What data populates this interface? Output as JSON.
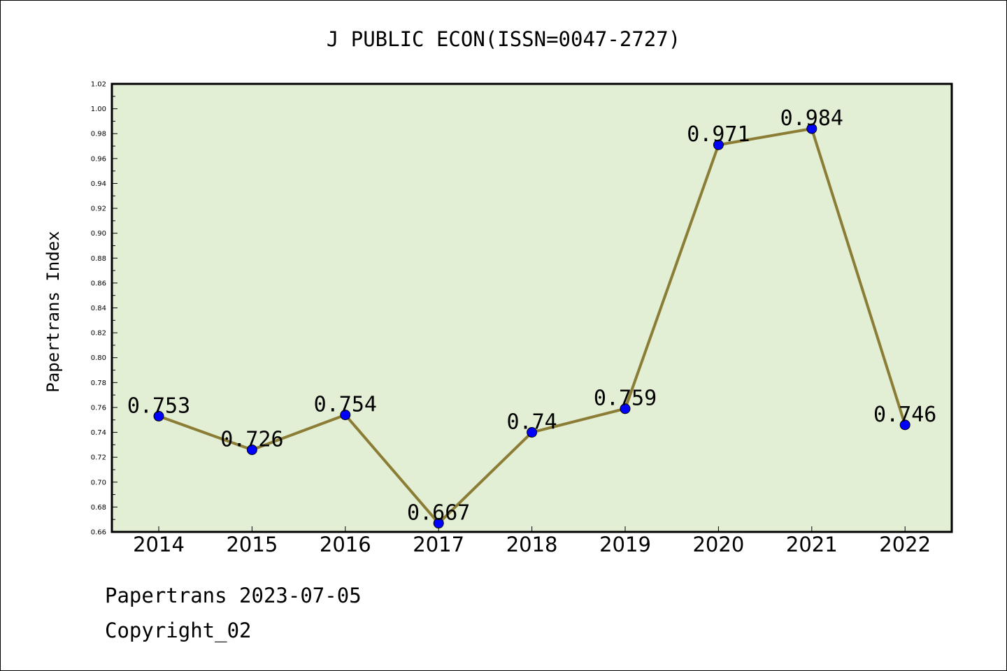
{
  "chart_data": {
    "type": "line",
    "title": "J PUBLIC ECON(ISSN=0047-2727)",
    "xlabel": "",
    "ylabel": "Papertrans Index",
    "x": [
      "2014",
      "2015",
      "2016",
      "2017",
      "2018",
      "2019",
      "2020",
      "2021",
      "2022"
    ],
    "series": [
      {
        "values": [
          0.753,
          0.726,
          0.754,
          0.667,
          0.74,
          0.759,
          0.971,
          0.984,
          0.746
        ],
        "labels": [
          "0.753",
          "0.726",
          "0.754",
          "0.667",
          "0.74",
          "0.759",
          "0.971",
          "0.984",
          "0.746"
        ]
      }
    ],
    "ylim": [
      0.66,
      1.02
    ],
    "yticks": [
      "0.66",
      "0.68",
      "0.70",
      "0.72",
      "0.74",
      "0.76",
      "0.78",
      "0.80",
      "0.82",
      "0.84",
      "0.86",
      "0.88",
      "0.90",
      "0.92",
      "0.94",
      "0.96",
      "0.98",
      "1.00",
      "1.02"
    ],
    "grid": false,
    "colors": {
      "plot_background": "#e2efd5",
      "line": "#8b7d35",
      "marker": "#0000ff"
    }
  },
  "footer": {
    "date_line": "Papertrans 2023-07-05",
    "copyright": "Copyright_02"
  }
}
